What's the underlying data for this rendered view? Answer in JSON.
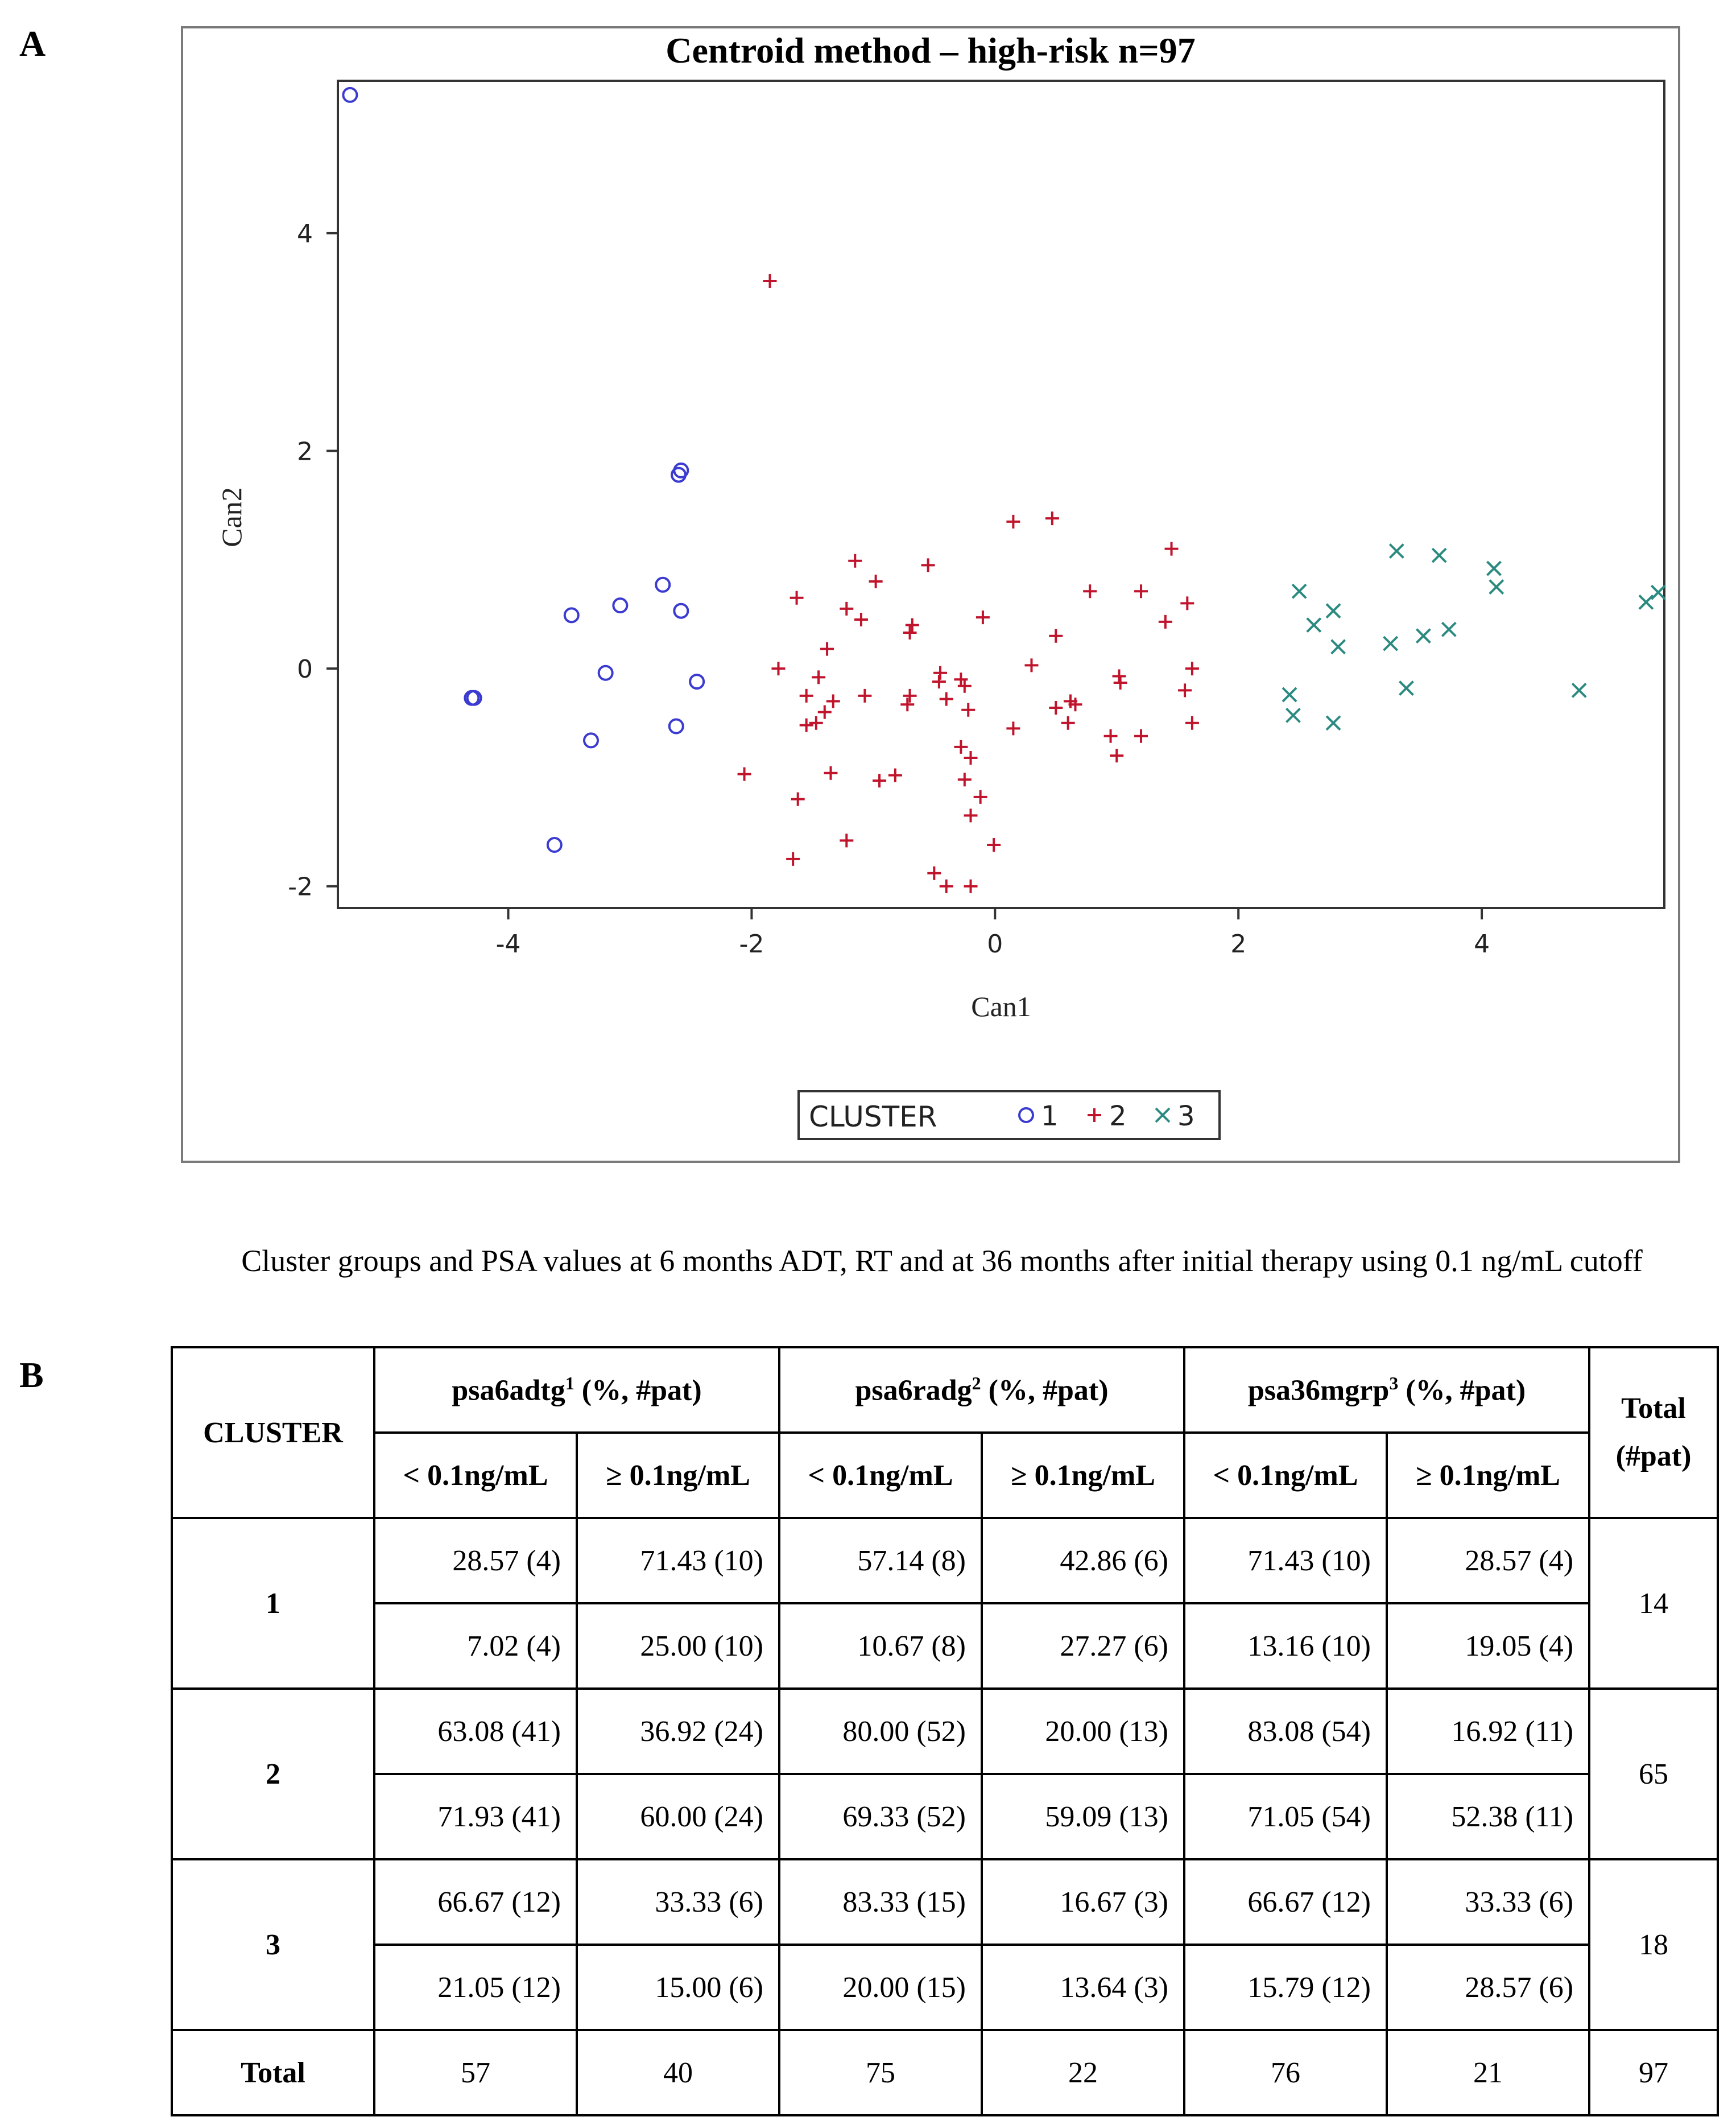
{
  "panels": {
    "a": "A",
    "b": "B"
  },
  "chart_data": {
    "type": "scatter",
    "title": "Centroid method – high-risk n=97",
    "xlabel": "Can1",
    "ylabel": "Can2",
    "xlim": [
      -5.4,
      5.5
    ],
    "ylim": [
      -2.2,
      5.4
    ],
    "xticks": [
      -4,
      -2,
      0,
      2,
      4
    ],
    "yticks": [
      -2,
      0,
      2,
      4
    ],
    "legend": {
      "title": "CLUSTER",
      "placement": "bottom-center"
    },
    "series": [
      {
        "name": "1",
        "marker": "circle",
        "color": "#3b3bd1",
        "points": [
          [
            -5.3,
            5.27
          ],
          [
            -2.58,
            1.82
          ],
          [
            -2.6,
            1.78
          ],
          [
            -3.48,
            0.49
          ],
          [
            -3.08,
            0.58
          ],
          [
            -2.73,
            0.77
          ],
          [
            -2.58,
            0.53
          ],
          [
            -3.2,
            -0.04
          ],
          [
            -2.45,
            -0.12
          ],
          [
            -4.3,
            -0.27
          ],
          [
            -4.28,
            -0.27
          ],
          [
            -2.62,
            -0.53
          ],
          [
            -3.32,
            -0.66
          ],
          [
            -3.62,
            -1.62
          ]
        ]
      },
      {
        "name": "2",
        "marker": "plus",
        "color": "#c0142c",
        "points": [
          [
            -1.85,
            3.56
          ],
          [
            0.47,
            1.38
          ],
          [
            0.15,
            1.35
          ],
          [
            1.45,
            1.1
          ],
          [
            -1.15,
            0.99
          ],
          [
            -0.55,
            0.95
          ],
          [
            -0.98,
            0.8
          ],
          [
            0.78,
            0.71
          ],
          [
            1.2,
            0.71
          ],
          [
            -1.63,
            0.65
          ],
          [
            -1.22,
            0.55
          ],
          [
            -1.1,
            0.45
          ],
          [
            -0.68,
            0.4
          ],
          [
            -0.7,
            0.33
          ],
          [
            -0.1,
            0.47
          ],
          [
            1.58,
            0.6
          ],
          [
            1.4,
            0.43
          ],
          [
            0.5,
            0.3
          ],
          [
            -1.38,
            0.18
          ],
          [
            -1.78,
            0.0
          ],
          [
            -1.45,
            -0.08
          ],
          [
            0.3,
            0.03
          ],
          [
            1.02,
            -0.07
          ],
          [
            1.03,
            -0.13
          ],
          [
            1.62,
            0.0
          ],
          [
            -0.45,
            -0.04
          ],
          [
            -0.46,
            -0.12
          ],
          [
            -0.25,
            -0.16
          ],
          [
            -1.55,
            -0.25
          ],
          [
            -1.33,
            -0.3
          ],
          [
            -1.4,
            -0.4
          ],
          [
            -1.07,
            -0.25
          ],
          [
            -0.7,
            -0.25
          ],
          [
            -0.72,
            -0.33
          ],
          [
            -0.4,
            -0.28
          ],
          [
            -0.22,
            -0.38
          ],
          [
            0.5,
            -0.36
          ],
          [
            0.62,
            -0.3
          ],
          [
            0.66,
            -0.33
          ],
          [
            1.56,
            -0.2
          ],
          [
            -1.55,
            -0.52
          ],
          [
            -1.47,
            -0.5
          ],
          [
            0.6,
            -0.5
          ],
          [
            0.15,
            -0.55
          ],
          [
            1.62,
            -0.5
          ],
          [
            0.95,
            -0.62
          ],
          [
            1.2,
            -0.62
          ],
          [
            -0.28,
            -0.72
          ],
          [
            -0.2,
            -0.82
          ],
          [
            1.0,
            -0.8
          ],
          [
            -2.06,
            -0.97
          ],
          [
            -1.35,
            -0.96
          ],
          [
            -0.95,
            -1.03
          ],
          [
            -0.82,
            -0.98
          ],
          [
            -0.25,
            -1.02
          ],
          [
            -0.12,
            -1.18
          ],
          [
            -1.62,
            -1.2
          ],
          [
            -0.2,
            -1.35
          ],
          [
            -1.22,
            -1.58
          ],
          [
            -0.01,
            -1.62
          ],
          [
            -1.66,
            -1.75
          ],
          [
            -0.5,
            -1.88
          ],
          [
            -0.4,
            -2.0
          ],
          [
            -0.2,
            -2.0
          ],
          [
            -0.28,
            -0.1
          ]
        ]
      },
      {
        "name": "3",
        "marker": "x",
        "color": "#2a8a80",
        "points": [
          [
            3.3,
            1.08
          ],
          [
            3.65,
            1.04
          ],
          [
            4.1,
            0.92
          ],
          [
            4.12,
            0.75
          ],
          [
            2.5,
            0.71
          ],
          [
            5.45,
            0.7
          ],
          [
            5.35,
            0.61
          ],
          [
            2.78,
            0.53
          ],
          [
            2.62,
            0.4
          ],
          [
            3.73,
            0.36
          ],
          [
            3.52,
            0.3
          ],
          [
            3.25,
            0.23
          ],
          [
            2.82,
            0.2
          ],
          [
            3.38,
            -0.18
          ],
          [
            4.8,
            -0.2
          ],
          [
            2.42,
            -0.24
          ],
          [
            2.45,
            -0.43
          ],
          [
            2.78,
            -0.5
          ]
        ]
      }
    ]
  },
  "caption": "Cluster groups and PSA values at 6 months ADT, RT and at 36 months after initial therapy using 0.1 ng/mL cutoff",
  "table": {
    "cluster_header": "CLUSTER",
    "total_header": "Total (#pat)",
    "groups": [
      {
        "name": "psa6adtg",
        "sup": "1",
        "suffix": " (%, #pat)"
      },
      {
        "name": "psa6radg",
        "sup": "2",
        "suffix": " (%, #pat)"
      },
      {
        "name": "psa36mgrp",
        "sup": "3",
        "suffix": " (%, #pat)"
      }
    ],
    "sub_lt": "< 0.1ng/mL",
    "sub_ge": "≥ 0.1ng/mL",
    "rows": [
      {
        "cluster": "1",
        "total": "14",
        "r1": [
          "28.57  (4)",
          "71.43 (10)",
          "57.14 (8)",
          "42.86 (6)",
          "71.43 (10)",
          "28.57 (4)"
        ],
        "r2": [
          "7.02  (4)",
          "25.00 (10)",
          "10.67 (8)",
          "27.27 (6)",
          "13.16 (10)",
          "19.05 (4)"
        ]
      },
      {
        "cluster": "2",
        "total": "65",
        "r1": [
          "63.08 (41)",
          "36.92 (24)",
          "80.00 (52)",
          "20.00 (13)",
          "83.08 (54)",
          "16.92 (11)"
        ],
        "r2": [
          "71.93 (41)",
          "60.00 (24)",
          "69.33 (52)",
          "59.09 (13)",
          "71.05 (54)",
          "52.38 (11)"
        ]
      },
      {
        "cluster": "3",
        "total": "18",
        "r1": [
          "66.67 (12)",
          "33.33 (6)",
          "83.33 (15)",
          "16.67 (3)",
          "66.67 (12)",
          "33.33 (6)"
        ],
        "r2": [
          "21.05 (12)",
          "15.00 (6)",
          "20.00 (15)",
          "13.64 (3)",
          "15.79 (12)",
          "28.57 (6)"
        ]
      }
    ],
    "total_row": {
      "label": "Total",
      "values": [
        "57",
        "40",
        "75",
        "22",
        "76",
        "21"
      ],
      "total": "97"
    }
  }
}
